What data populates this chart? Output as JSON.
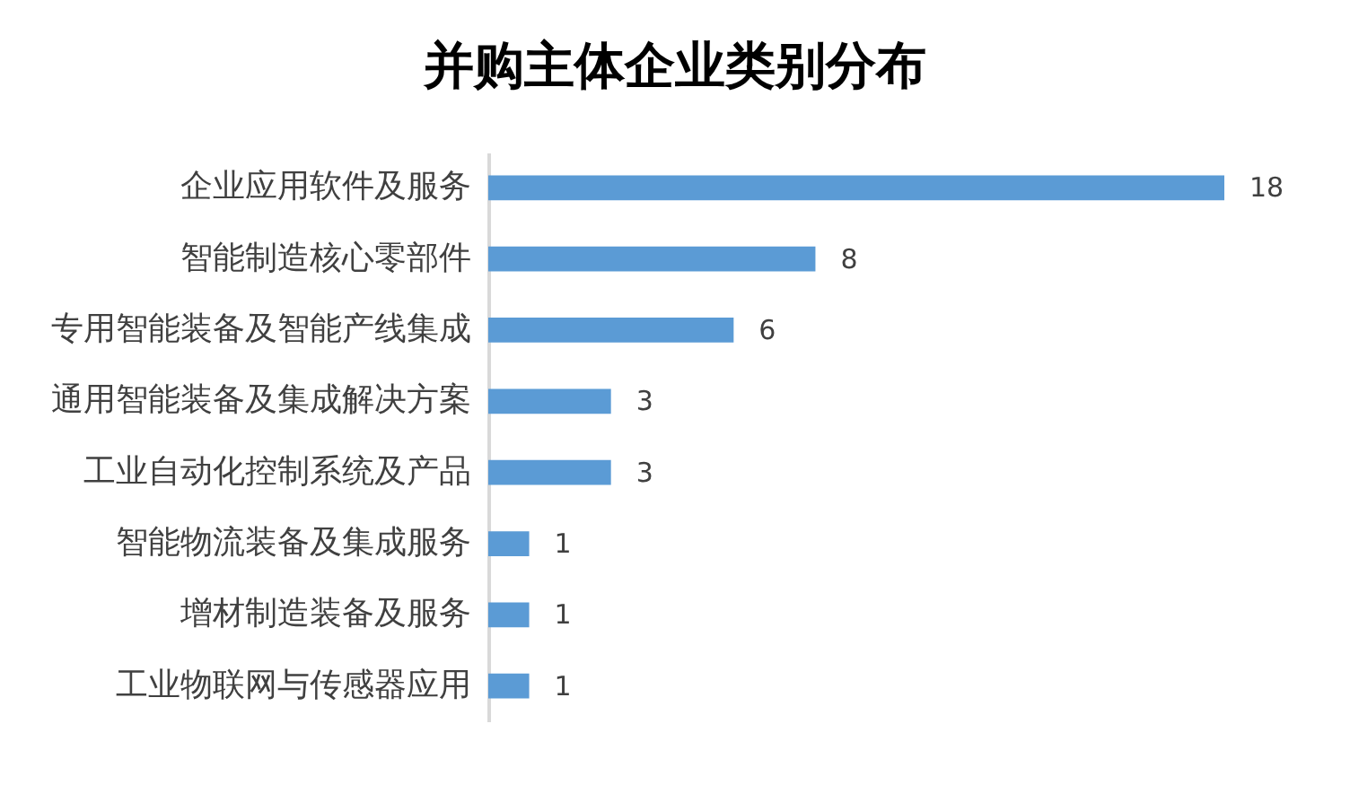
{
  "chart_data": {
    "type": "bar",
    "orientation": "horizontal",
    "title": "并购主体企业类别分布",
    "categories": [
      "企业应用软件及服务",
      "智能制造核心零部件",
      "专用智能装备及智能产线集成",
      "通用智能装备及集成解决方案",
      "工业自动化控制系统及产品",
      "智能物流装备及集成服务",
      "增材制造装备及服务",
      "工业物联网与传感器应用"
    ],
    "values": [
      18,
      8,
      6,
      3,
      3,
      1,
      1,
      1
    ],
    "color": "#5b9bd5",
    "data_labels": true
  }
}
